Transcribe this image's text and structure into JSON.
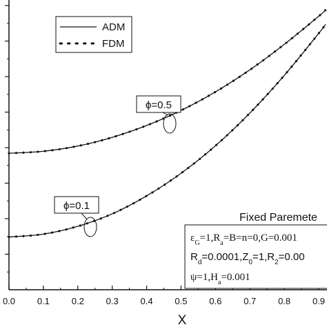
{
  "chart_data": {
    "type": "line",
    "xlabel": "X",
    "xlim": [
      0.0,
      0.92
    ],
    "ylim": [
      0,
      1
    ],
    "x_ticks": [
      "0.0",
      "0.1",
      "0.2",
      "0.3",
      "0.4",
      "0.5",
      "0.6",
      "0.7",
      "0.8",
      "0.9"
    ],
    "y_tick_count": 9,
    "legend": {
      "position": "top-left",
      "entries": [
        {
          "label": "ADM",
          "style": "solid"
        },
        {
          "label": "FDM",
          "style": "dotted"
        }
      ]
    },
    "series": [
      {
        "key": "phi05",
        "x": [
          0.0,
          0.1,
          0.2,
          0.3,
          0.4,
          0.5,
          0.6,
          0.7,
          0.8,
          0.9,
          0.92
        ],
        "y": [
          0.471,
          0.478,
          0.496,
          0.526,
          0.567,
          0.619,
          0.683,
          0.759,
          0.847,
          0.944,
          0.966
        ],
        "markers": "dots"
      },
      {
        "key": "phi01",
        "x": [
          0.0,
          0.1,
          0.2,
          0.3,
          0.4,
          0.5,
          0.6,
          0.7,
          0.8,
          0.9,
          0.92
        ],
        "y": [
          0.182,
          0.192,
          0.219,
          0.262,
          0.324,
          0.402,
          0.497,
          0.61,
          0.74,
          0.885,
          0.916
        ],
        "markers": "dots"
      }
    ],
    "annotations": [
      {
        "label": "ϕ=0.5",
        "target_series": "phi05",
        "target_x": 0.46
      },
      {
        "label": "ϕ=0.1",
        "target_series": "phi01",
        "target_x": 0.235
      }
    ],
    "parameters_box": {
      "title": "Fixed Paremete",
      "lines": [
        "ε_G=1,R_a=B=n=0,G=0.001",
        "R_d=0.0001,Z_0=1,R_2=0.00",
        "ψ=1,H_a=0.001"
      ]
    }
  }
}
